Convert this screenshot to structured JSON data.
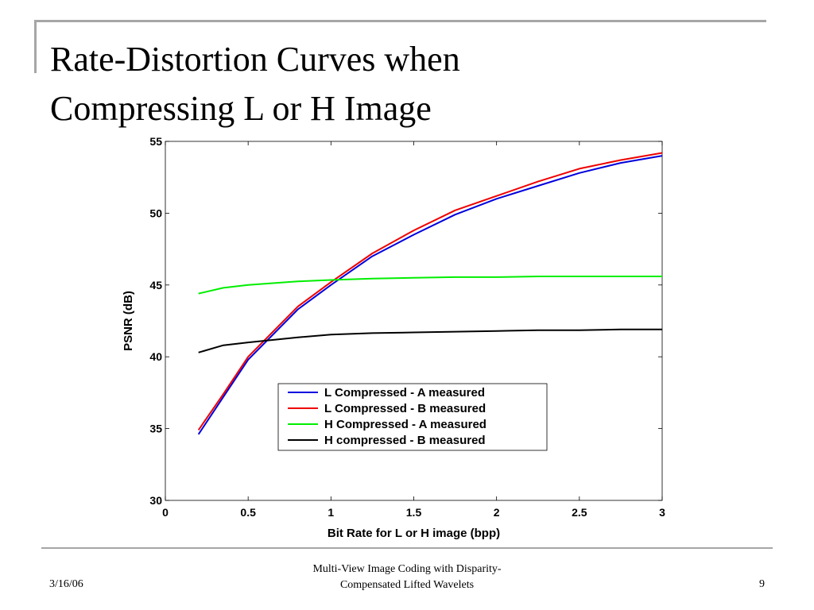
{
  "slide": {
    "title_line1": "Rate-Distortion Curves when",
    "title_line2": "Compressing L or H Image",
    "footer_date": "3/16/06",
    "footer_center_line1": "Multi-View Image Coding with Disparity-",
    "footer_center_line2": "Compensated Lifted Wavelets",
    "page_number": "9",
    "rule_color": "#a6a6a6"
  },
  "chart_data": {
    "type": "line",
    "title": "",
    "xlabel": "Bit Rate for L or H image (bpp)",
    "ylabel": "PSNR (dB)",
    "xlim": [
      0,
      3
    ],
    "ylim": [
      30,
      55
    ],
    "xticks": [
      "0",
      "0.5",
      "1",
      "1.5",
      "2",
      "2.5",
      "3"
    ],
    "yticks": [
      "30",
      "35",
      "40",
      "45",
      "50",
      "55"
    ],
    "grid": false,
    "legend_position": "lower-right-center",
    "series": [
      {
        "name": "L Compressed - A measured",
        "color": "#0000dd",
        "x": [
          0.2,
          0.35,
          0.5,
          0.8,
          1.0,
          1.25,
          1.5,
          1.75,
          2.0,
          2.25,
          2.5,
          2.75,
          3.0
        ],
        "y": [
          34.6,
          37.2,
          39.8,
          43.3,
          45.0,
          47.0,
          48.5,
          49.9,
          51.0,
          51.9,
          52.8,
          53.5,
          54.0
        ]
      },
      {
        "name": "L Compressed - B measured",
        "color": "#ee0000",
        "x": [
          0.2,
          0.35,
          0.5,
          0.8,
          1.0,
          1.25,
          1.5,
          1.75,
          2.0,
          2.25,
          2.5,
          2.75,
          3.0
        ],
        "y": [
          34.9,
          37.4,
          40.0,
          43.5,
          45.2,
          47.2,
          48.8,
          50.2,
          51.2,
          52.2,
          53.1,
          53.7,
          54.2
        ]
      },
      {
        "name": "H Compressed - A measured",
        "color": "#00ee00",
        "x": [
          0.2,
          0.35,
          0.5,
          0.8,
          1.0,
          1.25,
          1.5,
          1.75,
          2.0,
          2.25,
          2.5,
          2.75,
          3.0
        ],
        "y": [
          44.4,
          44.8,
          45.0,
          45.25,
          45.35,
          45.45,
          45.5,
          45.55,
          45.55,
          45.6,
          45.6,
          45.6,
          45.6
        ]
      },
      {
        "name": "H compressed - B measured",
        "color": "#000000",
        "x": [
          0.2,
          0.35,
          0.5,
          0.8,
          1.0,
          1.25,
          1.5,
          1.75,
          2.0,
          2.25,
          2.5,
          2.75,
          3.0
        ],
        "y": [
          40.3,
          40.8,
          41.0,
          41.35,
          41.55,
          41.65,
          41.7,
          41.75,
          41.8,
          41.85,
          41.85,
          41.9,
          41.9
        ]
      }
    ]
  }
}
